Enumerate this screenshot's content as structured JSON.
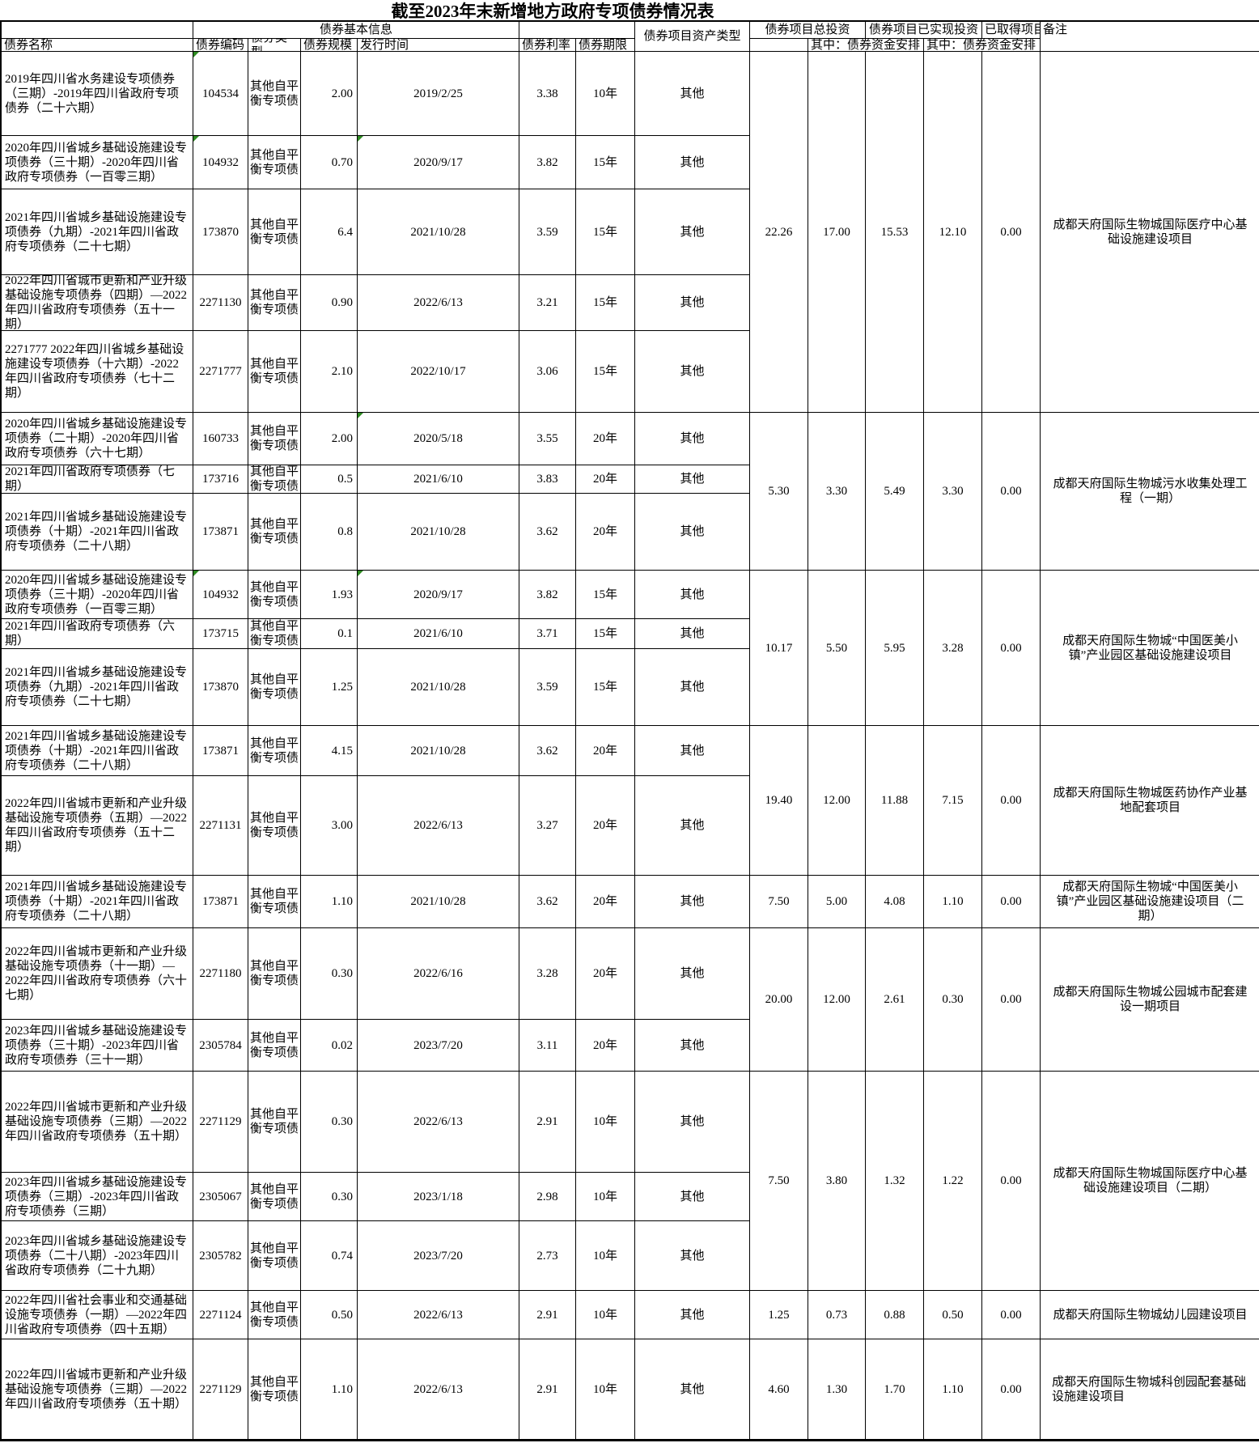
{
  "title": "截至2023年末新增地方政府专项债券情况表",
  "colors": {
    "border": "#000000",
    "background": "#ffffff",
    "error_marker_green": "#2e8b22"
  },
  "header": {
    "basic_info_group": "债券基本信息",
    "bond_name": "债券名称",
    "bond_code": "债券编码",
    "bond_type": "债券类型",
    "bond_scale": "债券规模",
    "issue_date": "发行时间",
    "bond_rate": "债券利率",
    "bond_term": "债券期限",
    "asset_type": "债券项目资产类型",
    "total_investment": "债券项目总投资",
    "realized_investment": "债券项目已实现投资",
    "obtained_project": "已取得项目",
    "remark": "备注",
    "sub_total_bond_funds": "其中：债券资金安排",
    "sub_realized_bond_funds": "其中：债券资金安排"
  },
  "rows": [
    {
      "name": "2019年四川省水务建设专项债券（三期）-2019年四川省政府专项债券（二十六期）",
      "code": "104534",
      "type": "其他自平衡专项债",
      "scale": "2.00",
      "date": "2019/2/25",
      "rate": "3.38",
      "term": "10年",
      "asset": "其他",
      "markers": [
        "code"
      ]
    },
    {
      "name": "2020年四川省城乡基础设施建设专项债券（三十期）-2020年四川省政府专项债券（一百零三期）",
      "code": "104932",
      "type": "其他自平衡专项债",
      "scale": "0.70",
      "date": "2020/9/17",
      "rate": "3.82",
      "term": "15年",
      "asset": "其他",
      "markers": [
        "code",
        "date"
      ]
    },
    {
      "name": "2021年四川省城乡基础设施建设专项债券（九期）-2021年四川省政府专项债券（二十七期）",
      "code": "173870",
      "type": "其他自平衡专项债",
      "scale": "6.4",
      "date": "2021/10/28",
      "rate": "3.59",
      "term": "15年",
      "asset": "其他",
      "markers": []
    },
    {
      "name": "2022年四川省城市更新和产业升级基础设施专项债券（四期）—2022年四川省政府专项债券（五十一期）",
      "code": "2271130",
      "type": "其他自平衡专项债",
      "scale": "0.90",
      "date": "2022/6/13",
      "rate": "3.21",
      "term": "15年",
      "asset": "其他",
      "markers": []
    },
    {
      "name": "2271777 2022年四川省城乡基础设施建设专项债券（十六期）-2022年四川省政府专项债券（七十二期）",
      "code": "2271777",
      "type": "其他自平衡专项债",
      "scale": "2.10",
      "date": "2022/10/17",
      "rate": "3.06",
      "term": "15年",
      "asset": "其他",
      "markers": []
    },
    {
      "name": "2020年四川省城乡基础设施建设专项债券（二十期）-2020年四川省政府专项债券（六十七期）",
      "code": "160733",
      "type": "其他自平衡专项债",
      "scale": "2.00",
      "date": "2020/5/18",
      "rate": "3.55",
      "term": "20年",
      "asset": "其他",
      "markers": [
        "date"
      ]
    },
    {
      "name": "2021年四川省政府专项债券（七期）",
      "code": "173716",
      "type": "其他自平衡专项债",
      "scale": "0.5",
      "date": "2021/6/10",
      "rate": "3.83",
      "term": "20年",
      "asset": "其他",
      "markers": []
    },
    {
      "name": "2021年四川省城乡基础设施建设专项债券（十期）-2021年四川省政府专项债券（二十八期）",
      "code": "173871",
      "type": "其他自平衡专项债",
      "scale": "0.8",
      "date": "2021/10/28",
      "rate": "3.62",
      "term": "20年",
      "asset": "其他",
      "markers": []
    },
    {
      "name": "2020年四川省城乡基础设施建设专项债券（三十期）-2020年四川省政府专项债券（一百零三期）",
      "code": "104932",
      "type": "其他自平衡专项债",
      "scale": "1.93",
      "date": "2020/9/17",
      "rate": "3.82",
      "term": "15年",
      "asset": "其他",
      "markers": [
        "code",
        "date"
      ]
    },
    {
      "name": "2021年四川省政府专项债券（六期）",
      "code": "173715",
      "type": "其他自平衡专项债",
      "scale": "0.1",
      "date": "2021/6/10",
      "rate": "3.71",
      "term": "15年",
      "asset": "其他",
      "markers": []
    },
    {
      "name": "2021年四川省城乡基础设施建设专项债券（九期）-2021年四川省政府专项债券（二十七期）",
      "code": "173870",
      "type": "其他自平衡专项债",
      "scale": "1.25",
      "date": "2021/10/28",
      "rate": "3.59",
      "term": "15年",
      "asset": "其他",
      "markers": []
    },
    {
      "name": "2021年四川省城乡基础设施建设专项债券（十期）-2021年四川省政府专项债券（二十八期）",
      "code": "173871",
      "type": "其他自平衡专项债",
      "scale": "4.15",
      "date": "2021/10/28",
      "rate": "3.62",
      "term": "20年",
      "asset": "其他",
      "markers": []
    },
    {
      "name": "2022年四川省城市更新和产业升级基础设施专项债券（五期）—2022年四川省政府专项债券（五十二期）",
      "code": "2271131",
      "type": "其他自平衡专项债",
      "scale": "3.00",
      "date": "2022/6/13",
      "rate": "3.27",
      "term": "20年",
      "asset": "其他",
      "markers": []
    },
    {
      "name": "2021年四川省城乡基础设施建设专项债券（十期）-2021年四川省政府专项债券（二十八期）",
      "code": "173871",
      "type": "其他自平衡专项债",
      "scale": "1.10",
      "date": "2021/10/28",
      "rate": "3.62",
      "term": "20年",
      "asset": "其他",
      "markers": []
    },
    {
      "name": "2022年四川省城市更新和产业升级基础设施专项债券（十一期）—2022年四川省政府专项债券（六十七期）",
      "code": "2271180",
      "type": "其他自平衡专项债",
      "scale": "0.30",
      "date": "2022/6/16",
      "rate": "3.28",
      "term": "20年",
      "asset": "其他",
      "markers": []
    },
    {
      "name": "2023年四川省城乡基础设施建设专项债券（三十期）-2023年四川省政府专项债券（三十一期）",
      "code": "2305784",
      "type": "其他自平衡专项债",
      "scale": "0.02",
      "date": "2023/7/20",
      "rate": "3.11",
      "term": "20年",
      "asset": "其他",
      "markers": []
    },
    {
      "name": "2022年四川省城市更新和产业升级基础设施专项债券（三期）—2022年四川省政府专项债券（五十期）",
      "code": "2271129",
      "type": "其他自平衡专项债",
      "scale": "0.30",
      "date": "2022/6/13",
      "rate": "2.91",
      "term": "10年",
      "asset": "其他",
      "markers": []
    },
    {
      "name": "2023年四川省城乡基础设施建设专项债券（三期）-2023年四川省政府专项债券（三期）",
      "code": "2305067",
      "type": "其他自平衡专项债",
      "scale": "0.30",
      "date": "2023/1/18",
      "rate": "2.98",
      "term": "10年",
      "asset": "其他",
      "markers": []
    },
    {
      "name": "2023年四川省城乡基础设施建设专项债券（二十八期）-2023年四川省政府专项债券（二十九期）",
      "code": "2305782",
      "type": "其他自平衡专项债",
      "scale": "0.74",
      "date": "2023/7/20",
      "rate": "2.73",
      "term": "10年",
      "asset": "其他",
      "markers": []
    },
    {
      "name": "2022年四川省社会事业和交通基础设施专项债券（一期）—2022年四川省政府专项债券（四十五期）",
      "code": "2271124",
      "type": "其他自平衡专项债",
      "scale": "0.50",
      "date": "2022/6/13",
      "rate": "2.91",
      "term": "10年",
      "asset": "其他",
      "markers": []
    },
    {
      "name": "2022年四川省城市更新和产业升级基础设施专项债券（三期）—2022年四川省政府专项债券（五十期）",
      "code": "2271129",
      "type": "其他自平衡专项债",
      "scale": "1.10",
      "date": "2022/6/13",
      "rate": "2.91",
      "term": "10年",
      "asset": "其他",
      "markers": []
    }
  ],
  "groups": [
    {
      "start": 1,
      "span": 5,
      "total": "22.26",
      "total_bond": "17.00",
      "realized": "15.53",
      "realized_bond": "12.10",
      "obtained": "0.00",
      "remark": "成都天府国际生物城国际医疗中心基础设施建设项目",
      "remark_align": "center"
    },
    {
      "start": 6,
      "span": 3,
      "total": "5.30",
      "total_bond": "3.30",
      "realized": "5.49",
      "realized_bond": "3.30",
      "obtained": "0.00",
      "remark": "成都天府国际生物城污水收集处理工程（一期）",
      "remark_align": "center"
    },
    {
      "start": 9,
      "span": 3,
      "total": "10.17",
      "total_bond": "5.50",
      "realized": "5.95",
      "realized_bond": "3.28",
      "obtained": "0.00",
      "remark": "成都天府国际生物城“中国医美小镇”产业园区基础设施建设项目",
      "remark_align": "center"
    },
    {
      "start": 12,
      "span": 2,
      "total": "19.40",
      "total_bond": "12.00",
      "realized": "11.88",
      "realized_bond": "7.15",
      "obtained": "0.00",
      "remark": "成都天府国际生物城医药协作产业基地配套项目",
      "remark_align": "center"
    },
    {
      "start": 14,
      "span": 1,
      "total": "7.50",
      "total_bond": "5.00",
      "realized": "4.08",
      "realized_bond": "1.10",
      "obtained": "0.00",
      "remark": "成都天府国际生物城“中国医美小镇”产业园区基础设施建设项目（二期）",
      "remark_align": "center"
    },
    {
      "start": 15,
      "span": 2,
      "total": "20.00",
      "total_bond": "12.00",
      "realized": "2.61",
      "realized_bond": "0.30",
      "obtained": "0.00",
      "remark": "成都天府国际生物城公园城市配套建设一期项目",
      "remark_align": "center"
    },
    {
      "start": 17,
      "span": 3,
      "total": "7.50",
      "total_bond": "3.80",
      "realized": "1.32",
      "realized_bond": "1.22",
      "obtained": "0.00",
      "remark": "成都天府国际生物城国际医疗中心基础设施建设项目（二期）",
      "remark_align": "center"
    },
    {
      "start": 20,
      "span": 1,
      "total": "1.25",
      "total_bond": "0.73",
      "realized": "0.88",
      "realized_bond": "0.50",
      "obtained": "0.00",
      "remark": "成都天府国际生物城幼儿园建设项目",
      "remark_align": "center"
    },
    {
      "start": 21,
      "span": 1,
      "total": "4.60",
      "total_bond": "1.30",
      "realized": "1.70",
      "realized_bond": "1.10",
      "obtained": "0.00",
      "remark": "成都天府国际生物城科创园配套基础设施建设项目",
      "remark_align": "left"
    }
  ]
}
